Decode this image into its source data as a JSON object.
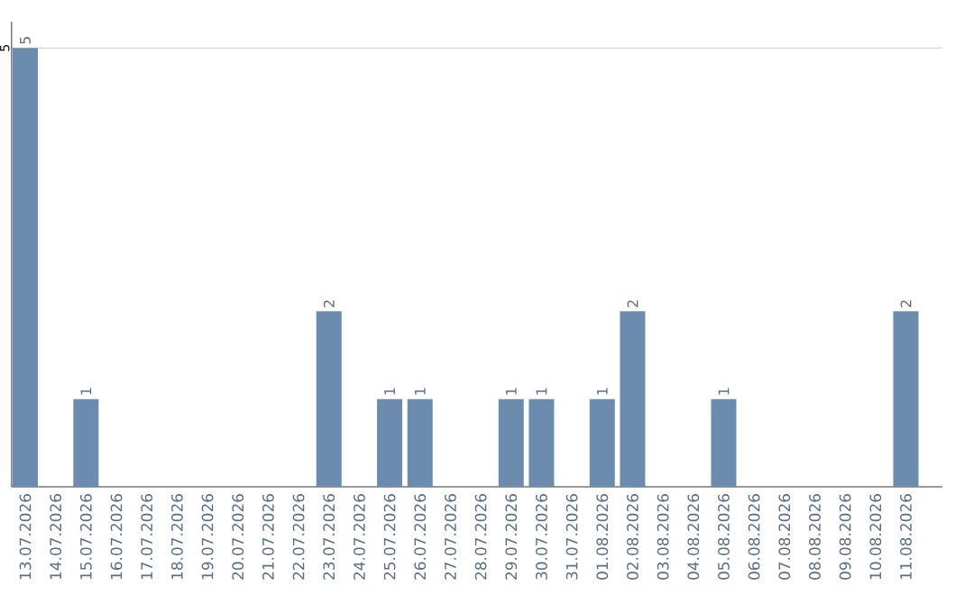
{
  "chart_data": {
    "type": "bar",
    "categories": [
      "13.07.2026",
      "14.07.2026",
      "15.07.2026",
      "16.07.2026",
      "17.07.2026",
      "18.07.2026",
      "19.07.2026",
      "20.07.2026",
      "21.07.2026",
      "22.07.2026",
      "23.07.2026",
      "24.07.2026",
      "25.07.2026",
      "26.07.2026",
      "27.07.2026",
      "28.07.2026",
      "29.07.2026",
      "30.07.2026",
      "31.07.2026",
      "01.08.2026",
      "02.08.2026",
      "03.08.2026",
      "04.08.2026",
      "05.08.2026",
      "06.08.2026",
      "07.08.2026",
      "08.08.2026",
      "09.08.2026",
      "10.08.2026",
      "11.08.2026"
    ],
    "values": [
      5,
      0,
      1,
      0,
      0,
      0,
      0,
      0,
      0,
      0,
      2,
      0,
      1,
      1,
      0,
      0,
      1,
      1,
      0,
      1,
      2,
      0,
      0,
      1,
      0,
      0,
      0,
      0,
      0,
      2
    ],
    "value_labels": [
      "5",
      null,
      "1",
      null,
      null,
      null,
      null,
      null,
      null,
      null,
      "2",
      null,
      "1",
      "1",
      null,
      null,
      "1",
      "1",
      null,
      "1",
      "2",
      null,
      null,
      "1",
      null,
      null,
      null,
      null,
      null,
      "2"
    ],
    "color": "#6b8cae",
    "ylim": [
      0,
      5.3
    ],
    "yticks": [
      5
    ],
    "grid": "y"
  }
}
